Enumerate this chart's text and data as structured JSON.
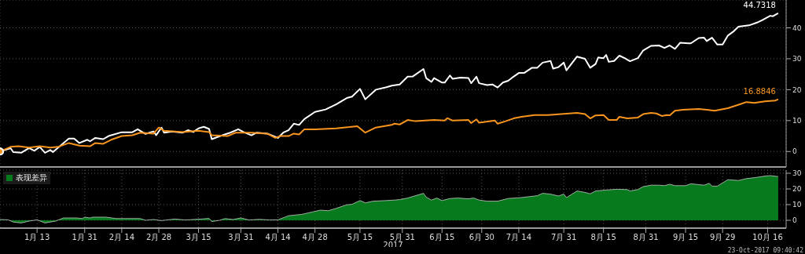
{
  "chart_data": [
    {
      "type": "line",
      "xlim": [
        "2016-12-30",
        "2017-10-23"
      ],
      "xticks": [
        "2017-01-13",
        "2017-01-31",
        "2017-02-14",
        "2017-02-28",
        "2017-03-15",
        "2017-03-31",
        "2017-04-14",
        "2017-04-28",
        "2017-05-15",
        "2017-05-31",
        "2017-06-15",
        "2017-06-30",
        "2017-07-14",
        "2017-07-31",
        "2017-08-15",
        "2017-08-31",
        "2017-09-15",
        "2017-09-29",
        "2017-10-16"
      ],
      "ylim": [
        -5,
        49
      ],
      "yticks": [
        0,
        10,
        20,
        30,
        40
      ],
      "grid": true,
      "tick_labels": "y",
      "series": [
        {
          "color": "#ffffff",
          "x": [
            "2016-12-30",
            "2017-01-03",
            "2017-01-04",
            "2017-01-07",
            "2017-01-10",
            "2017-01-12",
            "2017-01-14",
            "2017-01-16",
            "2017-01-18",
            "2017-01-19",
            "2017-01-21",
            "2017-01-25",
            "2017-01-27",
            "2017-01-29",
            "2017-02-01",
            "2017-02-02",
            "2017-02-04",
            "2017-02-07",
            "2017-02-09",
            "2017-02-14",
            "2017-02-18",
            "2017-02-20",
            "2017-02-23",
            "2017-02-26",
            "2017-02-27",
            "2017-03-01",
            "2017-03-02",
            "2017-03-05",
            "2017-03-09",
            "2017-03-11",
            "2017-03-13",
            "2017-03-15",
            "2017-03-17",
            "2017-03-19",
            "2017-03-20",
            "2017-03-24",
            "2017-03-27",
            "2017-03-30",
            "2017-04-01",
            "2017-04-04",
            "2017-04-06",
            "2017-04-10",
            "2017-04-14",
            "2017-04-16",
            "2017-04-18",
            "2017-04-20",
            "2017-04-22",
            "2017-04-24",
            "2017-04-28",
            "2017-05-02",
            "2017-05-06",
            "2017-05-10",
            "2017-05-12",
            "2017-05-15",
            "2017-05-17",
            "2017-05-21",
            "2017-05-25",
            "2017-05-27",
            "2017-05-30",
            "2017-06-02",
            "2017-06-04",
            "2017-06-08",
            "2017-06-09",
            "2017-06-11",
            "2017-06-12",
            "2017-06-15",
            "2017-06-16",
            "2017-06-18",
            "2017-06-19",
            "2017-06-22",
            "2017-06-25",
            "2017-06-26",
            "2017-06-28",
            "2017-06-29",
            "2017-07-02",
            "2017-07-04",
            "2017-07-06",
            "2017-07-08",
            "2017-07-10",
            "2017-07-12",
            "2017-07-14",
            "2017-07-16",
            "2017-07-19",
            "2017-07-21",
            "2017-07-23",
            "2017-07-26",
            "2017-07-27",
            "2017-07-29",
            "2017-07-31",
            "2017-08-01",
            "2017-08-03",
            "2017-08-05",
            "2017-08-08",
            "2017-08-10",
            "2017-08-12",
            "2017-08-13",
            "2017-08-15",
            "2017-08-16",
            "2017-08-17",
            "2017-08-19",
            "2017-08-21",
            "2017-08-23",
            "2017-08-25",
            "2017-08-28",
            "2017-08-30",
            "2017-09-02",
            "2017-09-05",
            "2017-09-07",
            "2017-09-09",
            "2017-09-11",
            "2017-09-13",
            "2017-09-16",
            "2017-09-17",
            "2017-09-20",
            "2017-09-22",
            "2017-09-23",
            "2017-09-25",
            "2017-09-27",
            "2017-09-29",
            "2017-10-01",
            "2017-10-03",
            "2017-10-05",
            "2017-10-09",
            "2017-10-12",
            "2017-10-14",
            "2017-10-17",
            "2017-10-18",
            "2017-10-20"
          ],
          "values": [
            0,
            1.1,
            -0.2,
            -0.4,
            1.1,
            0.25,
            1.5,
            -0.4,
            0.5,
            -0.2,
            1.3,
            4.2,
            4.2,
            2.75,
            3.8,
            3.3,
            4.4,
            4.0,
            5.0,
            6.25,
            6.25,
            7.2,
            5.7,
            6.5,
            5.3,
            7.75,
            6.1,
            6.5,
            6.1,
            6.9,
            6.3,
            7.5,
            8.0,
            7.3,
            4.0,
            5.25,
            6.1,
            7.2,
            6.3,
            5.25,
            6.1,
            5.8,
            4.4,
            6.1,
            6.9,
            9.0,
            8.6,
            10.5,
            12.8,
            13.6,
            15.25,
            17.3,
            17.75,
            20.25,
            16.9,
            20.0,
            20.8,
            21.3,
            21.7,
            24.2,
            24.3,
            26.7,
            23.75,
            22.5,
            23.75,
            22.3,
            22.3,
            24.6,
            23.5,
            23.9,
            23.75,
            22.1,
            24.2,
            22.1,
            21.5,
            21.7,
            20.7,
            22.3,
            22.9,
            24.2,
            25.4,
            25.4,
            27.1,
            27.1,
            28.75,
            29.3,
            26.8,
            27.3,
            28.75,
            26.25,
            28.5,
            30.7,
            30.0,
            27.1,
            28.3,
            30.4,
            30.2,
            31.25,
            29.0,
            29.3,
            31.0,
            30.2,
            29.2,
            30.2,
            32.7,
            34.2,
            34.3,
            33.5,
            34.3,
            33.2,
            35.2,
            35.0,
            35.0,
            36.7,
            36.8,
            35.7,
            36.8,
            34.6,
            34.6,
            37.5,
            38.75,
            40.4,
            40.8,
            41.7,
            42.5,
            43.9,
            43.75,
            44.7318
          ],
          "value_labels": [
            null,
            null,
            null,
            null,
            null,
            null,
            null,
            null,
            null,
            null,
            null,
            null,
            null,
            null,
            null,
            null,
            null,
            null,
            null,
            null,
            null,
            null,
            null,
            null,
            null,
            null,
            null,
            null,
            null,
            null,
            null,
            null,
            null,
            null,
            null,
            null,
            null,
            null,
            null,
            null,
            null,
            null,
            null,
            null,
            null,
            null,
            null,
            null,
            null,
            null,
            null,
            null,
            null,
            null,
            null,
            null,
            null,
            null,
            null,
            null,
            null,
            null,
            null,
            null,
            null,
            null,
            null,
            null,
            null,
            null,
            null,
            null,
            null,
            null,
            null,
            null,
            null,
            null,
            null,
            null,
            null,
            null,
            null,
            null,
            null,
            null,
            null,
            null,
            null,
            null,
            null,
            null,
            null,
            null,
            null,
            null,
            null,
            null,
            null,
            null,
            null,
            null,
            null,
            null,
            null,
            null,
            null,
            null,
            null,
            null,
            null,
            null,
            null,
            null,
            null,
            null,
            null,
            null,
            null,
            null,
            null,
            null,
            null,
            null,
            null,
            null,
            null,
            "44.7318"
          ]
        },
        {
          "color": "#f7941d",
          "x": [
            "2016-12-30",
            "2017-01-03",
            "2017-01-06",
            "2017-01-10",
            "2017-01-14",
            "2017-01-18",
            "2017-01-21",
            "2017-01-25",
            "2017-01-29",
            "2017-02-02",
            "2017-02-04",
            "2017-02-07",
            "2017-02-10",
            "2017-02-14",
            "2017-02-18",
            "2017-02-21",
            "2017-02-26",
            "2017-02-28",
            "2017-03-02",
            "2017-03-09",
            "2017-03-15",
            "2017-03-19",
            "2017-03-20",
            "2017-03-26",
            "2017-03-29",
            "2017-04-04",
            "2017-04-10",
            "2017-04-13",
            "2017-04-15",
            "2017-04-18",
            "2017-04-20",
            "2017-04-22",
            "2017-04-24",
            "2017-04-28",
            "2017-05-06",
            "2017-05-11",
            "2017-05-14",
            "2017-05-17",
            "2017-05-21",
            "2017-05-27",
            "2017-05-28",
            "2017-05-30",
            "2017-06-02",
            "2017-06-05",
            "2017-06-12",
            "2017-06-16",
            "2017-06-17",
            "2017-06-19",
            "2017-06-25",
            "2017-06-26",
            "2017-06-28",
            "2017-06-29",
            "2017-07-05",
            "2017-07-06",
            "2017-07-09",
            "2017-07-12",
            "2017-07-15",
            "2017-07-20",
            "2017-07-25",
            "2017-07-30",
            "2017-08-05",
            "2017-08-08",
            "2017-08-10",
            "2017-08-12",
            "2017-08-15",
            "2017-08-17",
            "2017-08-20",
            "2017-08-21",
            "2017-08-24",
            "2017-08-28",
            "2017-08-30",
            "2017-09-02",
            "2017-09-04",
            "2017-09-06",
            "2017-09-08",
            "2017-09-09",
            "2017-09-11",
            "2017-09-14",
            "2017-09-20",
            "2017-09-23",
            "2017-09-26",
            "2017-10-01",
            "2017-10-06",
            "2017-10-08",
            "2017-10-11",
            "2017-10-15",
            "2017-10-19",
            "2017-10-20"
          ],
          "values": [
            0,
            1.5,
            1.7,
            1.3,
            1.7,
            1.3,
            1.5,
            2.75,
            1.9,
            1.7,
            2.75,
            2.5,
            3.8,
            5.0,
            5.25,
            6.1,
            5.8,
            7.75,
            6.7,
            6.3,
            6.7,
            6.3,
            5.25,
            5.0,
            6.1,
            6.1,
            5.8,
            4.4,
            5.0,
            5.0,
            5.8,
            5.5,
            7.2,
            7.2,
            7.5,
            7.9,
            8.2,
            6.1,
            7.75,
            8.6,
            9.0,
            8.75,
            10.2,
            9.8,
            10.2,
            10.0,
            10.8,
            10.0,
            10.2,
            9.2,
            10.4,
            9.3,
            10.0,
            9.0,
            9.8,
            10.7,
            11.25,
            11.8,
            11.8,
            12.1,
            12.5,
            12.1,
            10.7,
            11.7,
            11.8,
            10.2,
            10.2,
            11.25,
            10.7,
            11.0,
            12.1,
            12.5,
            12.3,
            11.5,
            11.8,
            11.7,
            13.2,
            13.5,
            13.75,
            13.5,
            13.2,
            14.0,
            15.4,
            16.0,
            15.7,
            16.25,
            16.5,
            16.8846
          ],
          "value_labels": [
            null,
            null,
            null,
            null,
            null,
            null,
            null,
            null,
            null,
            null,
            null,
            null,
            null,
            null,
            null,
            null,
            null,
            null,
            null,
            null,
            null,
            null,
            null,
            null,
            null,
            null,
            null,
            null,
            null,
            null,
            null,
            null,
            null,
            null,
            null,
            null,
            null,
            null,
            null,
            null,
            null,
            null,
            null,
            null,
            null,
            null,
            null,
            null,
            null,
            null,
            null,
            null,
            null,
            null,
            null,
            null,
            null,
            null,
            null,
            null,
            null,
            null,
            null,
            null,
            null,
            null,
            null,
            null,
            null,
            null,
            null,
            null,
            null,
            null,
            null,
            null,
            null,
            null,
            null,
            null,
            null,
            null,
            null,
            null,
            null,
            null,
            null,
            "16.8846"
          ]
        }
      ]
    },
    {
      "type": "area",
      "xlim": [
        "2016-12-30",
        "2017-10-23"
      ],
      "xticks": [
        {
          "value": "2017-01-13",
          "label": "1月 13"
        },
        {
          "value": "2017-01-31",
          "label": "1月 31"
        },
        {
          "value": "2017-02-14",
          "label": "2月 14"
        },
        {
          "value": "2017-02-28",
          "label": "2月 28"
        },
        {
          "value": "2017-03-15",
          "label": "3月 15"
        },
        {
          "value": "2017-03-31",
          "label": "3月 31"
        },
        {
          "value": "2017-04-14",
          "label": "4月 14"
        },
        {
          "value": "2017-04-28",
          "label": "4月 28"
        },
        {
          "value": "2017-05-15",
          "label": "5月 15"
        },
        {
          "value": "2017-05-31",
          "label": "5月 31"
        },
        {
          "value": "2017-06-15",
          "label": "6月 15"
        },
        {
          "value": "2017-06-30",
          "label": "6月 30"
        },
        {
          "value": "2017-07-14",
          "label": "7月 14"
        },
        {
          "value": "2017-07-31",
          "label": "7月 31"
        },
        {
          "value": "2017-08-15",
          "label": "8月 15"
        },
        {
          "value": "2017-08-31",
          "label": "8月 31"
        },
        {
          "value": "2017-09-15",
          "label": "9月 15"
        },
        {
          "value": "2017-09-29",
          "label": "9月 29"
        },
        {
          "value": "2017-10-16",
          "label": "10月 16"
        }
      ],
      "ylim": [
        -5,
        32
      ],
      "yticks": [
        0,
        10,
        20,
        30
      ],
      "grid": true,
      "legend": "top left",
      "xlabel": "2017",
      "annotations": [
        "23-Oct-2017 09:40:42"
      ],
      "series": [
        {
          "name": "表现差异",
          "color": "#087a1e",
          "x": [
            "2016-12-30",
            "2017-01-02",
            "2017-01-04",
            "2017-01-07",
            "2017-01-10",
            "2017-01-13",
            "2017-01-16",
            "2017-01-20",
            "2017-01-23",
            "2017-01-28",
            "2017-01-30",
            "2017-01-31",
            "2017-02-02",
            "2017-02-03",
            "2017-02-08",
            "2017-02-12",
            "2017-02-21",
            "2017-02-23",
            "2017-02-26",
            "2017-03-01",
            "2017-03-06",
            "2017-03-10",
            "2017-03-16",
            "2017-03-19",
            "2017-03-20",
            "2017-03-23",
            "2017-03-25",
            "2017-03-28",
            "2017-03-31",
            "2017-04-03",
            "2017-04-07",
            "2017-04-11",
            "2017-04-14",
            "2017-04-18",
            "2017-04-23",
            "2017-04-27",
            "2017-04-30",
            "2017-05-03",
            "2017-05-06",
            "2017-05-10",
            "2017-05-12",
            "2017-05-15",
            "2017-05-17",
            "2017-05-20",
            "2017-05-25",
            "2017-05-28",
            "2017-05-30",
            "2017-06-02",
            "2017-06-08",
            "2017-06-09",
            "2017-06-11",
            "2017-06-13",
            "2017-06-15",
            "2017-06-18",
            "2017-06-21",
            "2017-06-25",
            "2017-06-27",
            "2017-06-29",
            "2017-07-02",
            "2017-07-06",
            "2017-07-10",
            "2017-07-15",
            "2017-07-21",
            "2017-07-23",
            "2017-07-26",
            "2017-07-29",
            "2017-07-31",
            "2017-08-01",
            "2017-08-03",
            "2017-08-05",
            "2017-08-08",
            "2017-08-10",
            "2017-08-12",
            "2017-08-16",
            "2017-08-20",
            "2017-08-24",
            "2017-08-25",
            "2017-08-28",
            "2017-08-30",
            "2017-09-02",
            "2017-09-05",
            "2017-09-07",
            "2017-09-09",
            "2017-09-11",
            "2017-09-15",
            "2017-09-17",
            "2017-09-22",
            "2017-09-24",
            "2017-09-25",
            "2017-09-27",
            "2017-09-29",
            "2017-10-01",
            "2017-10-05",
            "2017-10-08",
            "2017-10-12",
            "2017-10-15",
            "2017-10-17",
            "2017-10-20"
          ],
          "values": [
            0.5,
            0.3,
            -1.1,
            -1.7,
            -0.5,
            0.3,
            -1.7,
            -0.5,
            1.5,
            1.5,
            1.1,
            2.0,
            1.5,
            2.0,
            2.0,
            1.1,
            1.1,
            0,
            0.5,
            -0.2,
            0.8,
            0.2,
            0.8,
            1.2,
            -0.8,
            0,
            1.1,
            0.5,
            1.5,
            0.2,
            0.6,
            0.2,
            0.3,
            2.9,
            3.8,
            5.3,
            6.5,
            6.1,
            7.6,
            9.9,
            10.2,
            12.6,
            11.1,
            12.2,
            12.6,
            12.9,
            13.2,
            14.2,
            17.2,
            14.8,
            12.9,
            14.2,
            12.6,
            13.9,
            14.2,
            13.7,
            14.2,
            12.9,
            12.2,
            12.2,
            13.9,
            14.5,
            15.7,
            17.2,
            16.7,
            15.5,
            16.7,
            14.5,
            16.6,
            18.7,
            17.8,
            16.9,
            18.7,
            19.3,
            19.8,
            19.6,
            18.7,
            19.6,
            21.5,
            22.4,
            22.4,
            22.1,
            23.0,
            22.1,
            22.1,
            23.3,
            22.4,
            23.6,
            21.8,
            21.8,
            23.9,
            25.9,
            25.4,
            26.6,
            27.4,
            28.2,
            28.5,
            27.9
          ]
        }
      ]
    }
  ]
}
